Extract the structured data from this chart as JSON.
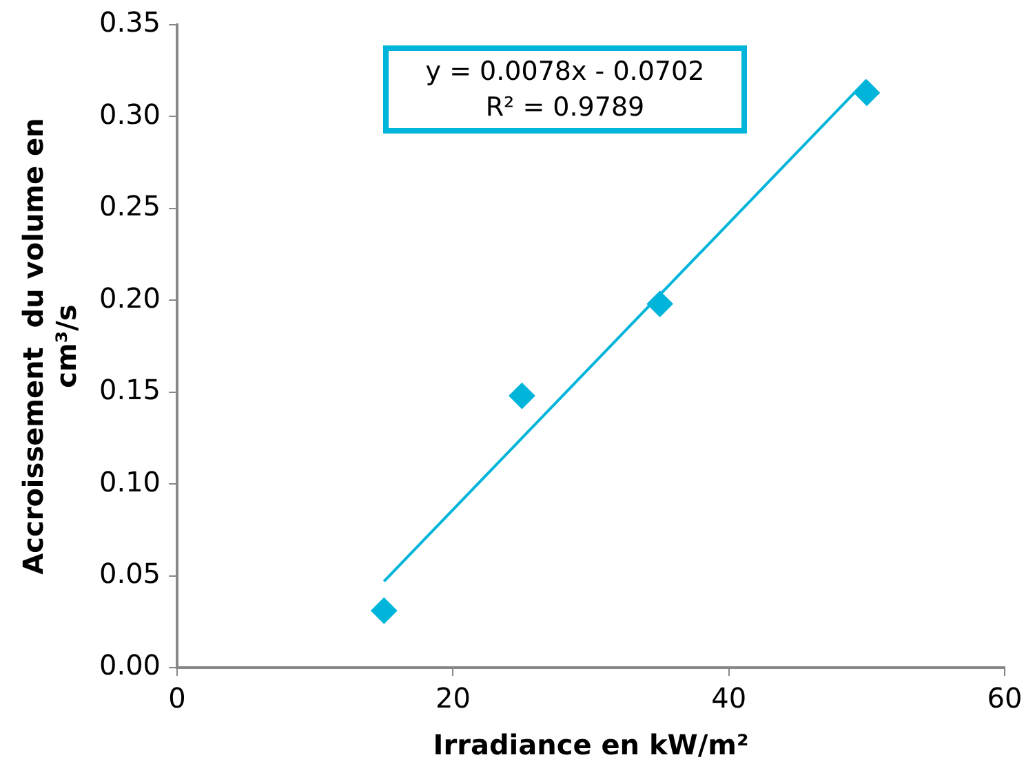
{
  "chart_data": {
    "type": "scatter",
    "xlabel": "Irradiance en kW/m²",
    "ylabel": "Accroissement  du volume en\ncm³/s",
    "annotations": [
      "y = 0.0078x - 0.0702\nR² = 0.9789"
    ],
    "series": [
      {
        "type": "scatter",
        "color": "#00b4da",
        "marker": "diamond",
        "x": [
          15,
          25,
          35,
          50
        ],
        "values": [
          0.031,
          0.148,
          0.198,
          0.313
        ]
      },
      {
        "type": "line",
        "color": "#00b4da",
        "marker": "none",
        "x": [
          15,
          50
        ],
        "values": [
          0.047,
          0.32
        ]
      }
    ],
    "xlim": [
      0,
      60
    ],
    "xticks": [
      0,
      20,
      40,
      60
    ],
    "ylim": [
      0,
      0.35
    ],
    "yticks": [
      {
        "value": 0,
        "label": "0.00"
      },
      {
        "value": 0.05,
        "label": "0.05"
      },
      {
        "value": 0.1,
        "label": "0.10"
      },
      {
        "value": 0.15,
        "label": "0.15"
      },
      {
        "value": 0.2,
        "label": "0.20"
      },
      {
        "value": 0.25,
        "label": "0.25"
      },
      {
        "value": 0.3,
        "label": "0.30"
      },
      {
        "value": 0.35,
        "label": "0.35"
      }
    ],
    "grid": false,
    "legend": false
  }
}
